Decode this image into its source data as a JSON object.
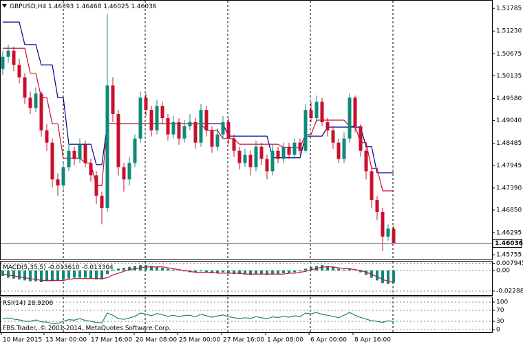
{
  "chart_data": [
    {
      "type": "candlestick",
      "title": "GBPUSD,H4",
      "header_values": [
        1.46393,
        1.46468,
        1.46025,
        1.46036
      ],
      "up_color": "#0e8a78",
      "down_color": "#c8102e",
      "ylim": [
        1.4564,
        1.5199
      ],
      "yticks": [
        1.51785,
        {
          "value": 1.5123,
          "label": "1.51230"
        },
        1.50675,
        1.50135,
        {
          "value": 1.4958,
          "label": "1.49580"
        },
        {
          "value": 1.4904,
          "label": "1.49040"
        },
        1.48485,
        1.47945,
        {
          "value": 1.4739,
          "label": "1.47390"
        },
        {
          "value": 1.4685,
          "label": "1.46850"
        },
        1.46295,
        1.45755
      ],
      "bid": 1.46036,
      "series": [
        {
          "open": [
            1.503,
            1.506,
            1.5075,
            1.504,
            1.501,
            1.496,
            1.4935,
            1.497,
            1.488,
            1.485,
            1.476,
            1.4745,
            1.479,
            1.483,
            1.481,
            1.4845,
            1.48,
            1.477,
            1.472,
            1.469,
            1.499,
            1.492,
            1.479,
            1.476,
            1.48,
            1.486,
            1.496,
            1.493,
            1.488,
            1.494,
            1.491,
            1.487,
            1.49,
            1.486,
            1.489,
            1.49,
            1.485,
            1.493,
            1.488,
            1.484,
            1.487,
            1.49,
            1.486,
            1.483,
            1.48,
            1.482,
            1.479,
            1.484,
            1.481,
            1.478,
            1.483,
            1.481,
            1.484,
            1.482,
            1.485,
            1.483,
            1.493,
            1.491,
            1.495,
            1.49,
            1.488,
            1.485,
            1.481,
            1.486,
            1.496,
            1.489,
            1.483,
            1.478,
            1.471,
            1.468,
            1.462,
            1.46393
          ],
          "high": [
            1.5075,
            1.509,
            1.5085,
            1.5055,
            1.502,
            1.4975,
            1.4985,
            1.4975,
            1.4895,
            1.486,
            1.4775,
            1.48,
            1.485,
            1.484,
            1.486,
            1.4855,
            1.481,
            1.478,
            1.473,
            1.5165,
            1.501,
            1.493,
            1.48,
            1.4815,
            1.487,
            1.4975,
            1.497,
            1.494,
            1.4955,
            1.495,
            1.492,
            1.4915,
            1.491,
            1.4905,
            1.492,
            1.491,
            1.4945,
            1.494,
            1.489,
            1.4885,
            1.4915,
            1.491,
            1.487,
            1.484,
            1.4835,
            1.483,
            1.4855,
            1.485,
            1.482,
            1.4845,
            1.484,
            1.485,
            1.485,
            1.486,
            1.486,
            1.4945,
            1.495,
            1.4965,
            1.496,
            1.491,
            1.489,
            1.486,
            1.4875,
            1.497,
            1.4965,
            1.4895,
            1.484,
            1.479,
            1.472,
            1.469,
            1.465,
            1.46468
          ],
          "low": [
            1.5015,
            1.5045,
            1.5025,
            1.4995,
            1.4945,
            1.492,
            1.4925,
            1.4865,
            1.483,
            1.474,
            1.472,
            1.4735,
            1.478,
            1.4795,
            1.48,
            1.479,
            1.4755,
            1.47,
            1.465,
            1.468,
            1.49,
            1.477,
            1.473,
            1.4745,
            1.479,
            1.485,
            1.4915,
            1.4865,
            1.487,
            1.4895,
            1.4855,
            1.486,
            1.4845,
            1.485,
            1.488,
            1.4835,
            1.484,
            1.4865,
            1.4825,
            1.483,
            1.486,
            1.4845,
            1.4815,
            1.4785,
            1.479,
            1.477,
            1.478,
            1.4795,
            1.476,
            1.477,
            1.48,
            1.48,
            1.481,
            1.481,
            1.482,
            1.4825,
            1.49,
            1.49,
            1.489,
            1.4865,
            1.4835,
            1.48,
            1.48,
            1.485,
            1.4875,
            1.4815,
            1.476,
            1.469,
            1.466,
            1.4585,
            1.461,
            1.46025
          ],
          "close": [
            1.506,
            1.5075,
            1.504,
            1.501,
            1.496,
            1.4935,
            1.497,
            1.488,
            1.485,
            1.476,
            1.4745,
            1.479,
            1.483,
            1.481,
            1.4845,
            1.48,
            1.477,
            1.472,
            1.469,
            1.499,
            1.492,
            1.479,
            1.476,
            1.48,
            1.486,
            1.496,
            1.493,
            1.488,
            1.494,
            1.491,
            1.487,
            1.49,
            1.486,
            1.489,
            1.49,
            1.485,
            1.493,
            1.488,
            1.484,
            1.487,
            1.49,
            1.486,
            1.483,
            1.48,
            1.482,
            1.479,
            1.484,
            1.481,
            1.478,
            1.483,
            1.481,
            1.484,
            1.482,
            1.485,
            1.483,
            1.493,
            1.491,
            1.495,
            1.49,
            1.488,
            1.485,
            1.481,
            1.486,
            1.496,
            1.489,
            1.483,
            1.478,
            1.471,
            1.468,
            1.462,
            1.464,
            1.46036
          ]
        }
      ],
      "lines": [
        {
          "color": "#00008b",
          "values": [
            1.5145,
            1.5145,
            1.5145,
            1.5145,
            1.509,
            1.509,
            1.509,
            1.504,
            1.504,
            1.504,
            1.496,
            1.496,
            1.4846,
            1.4846,
            1.4846,
            1.4846,
            1.4846,
            1.4796,
            1.4796,
            1.4896,
            1.4896,
            1.4896,
            1.4896,
            1.4896,
            1.4896,
            1.4896,
            1.4896,
            1.4896,
            1.4896,
            1.4896,
            1.4896,
            1.4896,
            1.4896,
            1.4896,
            1.4896,
            1.4896,
            1.4896,
            1.4896,
            1.4896,
            1.4896,
            1.4896,
            1.4866,
            1.4866,
            1.4866,
            1.4866,
            1.4866,
            1.4866,
            1.4866,
            1.4866,
            1.4813,
            1.4813,
            1.4813,
            1.4813,
            1.4813,
            1.4813,
            1.4866,
            1.4866,
            1.4866,
            1.4866,
            1.4888,
            1.4888,
            1.4888,
            1.4888,
            1.4888,
            1.4888,
            1.4888,
            1.484,
            1.484,
            1.4776,
            1.4776,
            1.4776,
            1.4776
          ]
        },
        {
          "color": "#c8102e",
          "values": [
            1.5081,
            1.5081,
            1.5081,
            1.5081,
            1.5081,
            1.502,
            1.502,
            1.496,
            1.496,
            1.4896,
            1.4896,
            1.4812,
            1.4812,
            1.4812,
            1.4812,
            1.48,
            1.48,
            1.4745,
            1.4745,
            1.4896,
            1.4896,
            1.4896,
            1.4896,
            1.4896,
            1.4896,
            1.4896,
            1.4896,
            1.4896,
            1.4896,
            1.4896,
            1.4896,
            1.4896,
            1.4896,
            1.4896,
            1.4896,
            1.4896,
            1.4896,
            1.488,
            1.488,
            1.488,
            1.486,
            1.486,
            1.486,
            1.4846,
            1.4846,
            1.4846,
            1.4846,
            1.4846,
            1.4846,
            1.4846,
            1.4846,
            1.4838,
            1.4838,
            1.4838,
            1.4838,
            1.487,
            1.487,
            1.4905,
            1.4905,
            1.4905,
            1.4905,
            1.4905,
            1.4905,
            1.489,
            1.489,
            1.485,
            1.485,
            1.4787,
            1.4787,
            1.4732,
            1.4732,
            1.4732
          ]
        }
      ]
    },
    {
      "type": "macd",
      "title": "MACD(5,35,5)",
      "header_values": [
        "-0.013610",
        "-0.013304"
      ],
      "ylim": [
        -0.0275,
        0.0107
      ],
      "yticks": [
        0.007945,
        {
          "value": 0,
          "label": "0.00"
        },
        -0.022883
      ],
      "grid": true,
      "series": [
        {
          "color": "#0e8a78",
          "values": [
            -0.006,
            -0.008,
            -0.009,
            -0.01,
            -0.011,
            -0.012,
            -0.012,
            -0.013,
            -0.012,
            -0.012,
            -0.011,
            -0.01,
            -0.009,
            -0.008,
            -0.008,
            -0.008,
            -0.009,
            -0.01,
            -0.01,
            -0.004,
            0.001,
            0.002,
            0.003,
            0.004,
            0.005,
            0.006,
            0.006,
            0.005,
            0.004,
            0.003,
            0.002,
            0.001,
            0,
            -0.001,
            -0.002,
            -0.002,
            -0.001,
            -0.002,
            -0.003,
            -0.003,
            -0.002,
            -0.003,
            -0.004,
            -0.004,
            -0.004,
            -0.005,
            -0.004,
            -0.004,
            -0.005,
            -0.004,
            -0.004,
            -0.003,
            -0.003,
            -0.002,
            -0.001,
            0.002,
            0.004,
            0.005,
            0.006,
            0.005,
            0.004,
            0.002,
            0.001,
            0.002,
            0,
            -0.002,
            -0.005,
            -0.008,
            -0.011,
            -0.014,
            -0.015,
            -0.0136
          ]
        },
        {
          "color": "#c8102e",
          "values": [
            -0.004,
            -0.005,
            -0.006,
            -0.007,
            -0.008,
            -0.009,
            -0.01,
            -0.011,
            -0.011,
            -0.011,
            -0.011,
            -0.011,
            -0.01,
            -0.009,
            -0.009,
            -0.009,
            -0.009,
            -0.009,
            -0.009,
            -0.008,
            -0.005,
            -0.003,
            -0.001,
            0.001,
            0.002,
            0.003,
            0.004,
            0.004,
            0.004,
            0.004,
            0.003,
            0.002,
            0.001,
            0,
            -0.001,
            -0.002,
            -0.002,
            -0.002,
            -0.002,
            -0.003,
            -0.003,
            -0.003,
            -0.003,
            -0.003,
            -0.004,
            -0.004,
            -0.004,
            -0.004,
            -0.004,
            -0.004,
            -0.004,
            -0.004,
            -0.003,
            -0.003,
            -0.002,
            -0.001,
            0.001,
            0.002,
            0.004,
            0.004,
            0.004,
            0.003,
            0.002,
            0.002,
            0.001,
            0,
            -0.002,
            -0.004,
            -0.007,
            -0.01,
            -0.012,
            -0.0133
          ]
        }
      ]
    },
    {
      "type": "line",
      "title": "RSI(14)",
      "header_values": [
        28.9206
      ],
      "ylim": [
        -10,
        120
      ],
      "yticks": [
        100,
        70,
        30,
        0
      ],
      "grid": true,
      "series": [
        {
          "color": "#1f7f7f",
          "values": [
            40,
            42,
            38,
            35,
            30,
            30,
            35,
            28,
            27,
            22,
            22,
            30,
            36,
            34,
            40,
            33,
            30,
            26,
            24,
            60,
            52,
            40,
            37,
            42,
            48,
            60,
            56,
            50,
            58,
            54,
            48,
            52,
            47,
            51,
            52,
            46,
            56,
            50,
            45,
            49,
            53,
            47,
            43,
            40,
            43,
            40,
            47,
            43,
            39,
            46,
            44,
            48,
            45,
            50,
            47,
            60,
            57,
            62,
            55,
            52,
            48,
            43,
            52,
            62,
            52,
            44,
            38,
            32,
            30,
            26,
            32,
            28.9206
          ]
        }
      ]
    }
  ],
  "x_axis_labels": [
    "10 Mar 2015",
    "13 Mar 00:00",
    "17 Mar 16:00",
    "20 Mar 08:00",
    "25 Mar 00:00",
    "27 Mar 16:00",
    "1 Apr 08:00",
    "6 Apr 00:00",
    "8 Apr 16:00"
  ],
  "watermark": "FBS Trader, © 2001-2014, MetaQuotes Software Corp."
}
